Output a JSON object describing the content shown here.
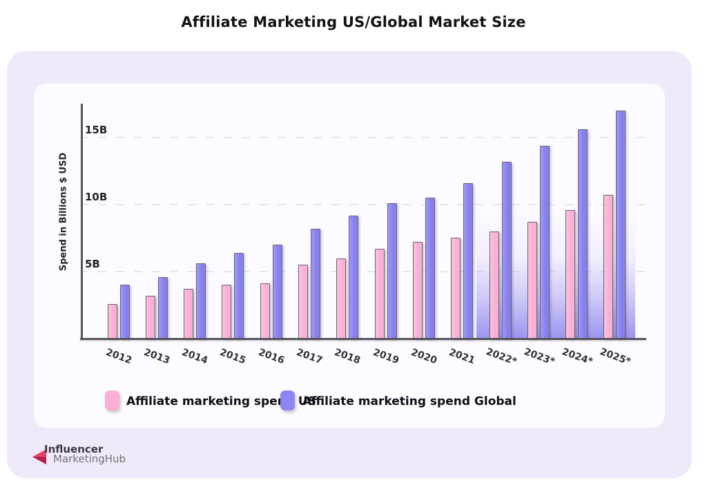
{
  "page": {
    "title": "Affiliate Marketing US/Global Market Size"
  },
  "chart_data": {
    "type": "bar",
    "title": "Affiliate Marketing US/Global Market Size",
    "categories": [
      "2012",
      "2013",
      "2014",
      "2015",
      "2016",
      "2017",
      "2018",
      "2019",
      "2020",
      "2021",
      "2022*",
      "2023*",
      "2024*",
      "2025*"
    ],
    "series": [
      {
        "name": "Affiliate marketing spend US",
        "color": "#f9b0d4",
        "values": [
          2.6,
          3.2,
          3.7,
          4.0,
          4.1,
          5.5,
          6.0,
          6.7,
          7.2,
          7.5,
          8.0,
          8.7,
          9.6,
          10.7
        ]
      },
      {
        "name": "Affiliate marketing spend Global",
        "color": "#8d86f2",
        "values": [
          4.0,
          4.6,
          5.6,
          6.4,
          7.0,
          8.2,
          9.2,
          10.1,
          10.5,
          11.6,
          13.2,
          14.4,
          15.6,
          17.0
        ]
      }
    ],
    "xlabel": "",
    "ylabel": "Spend in Billions $ USD",
    "ylim": [
      0,
      17.5
    ],
    "yticks": [
      {
        "value": 5,
        "label": "5B"
      },
      {
        "value": 10,
        "label": "10B"
      },
      {
        "value": 15,
        "label": "15B"
      }
    ],
    "grid": "horizontal-dashed",
    "legend_position": "bottom",
    "forecast_years": [
      "2022*",
      "2023*",
      "2024*",
      "2025*"
    ]
  },
  "legend": {
    "items": [
      {
        "label": "Affiliate marketing spend US",
        "color": "#f9b0d4"
      },
      {
        "label": "Affiliate marketing spend Global",
        "color": "#8d86f2"
      }
    ]
  },
  "logo": {
    "line1": "Influencer",
    "line2": "MarketingHub"
  },
  "colors": {
    "page_background": "#ffffff",
    "outer_card": "#efe9fa",
    "inner_card": "#fcfbff",
    "axis": "#55525c",
    "gridline": "#e7e6ed",
    "bar_us": "#f9b0d4",
    "bar_global": "#8d86f2",
    "forecast_glow": "#948cec",
    "logo_arrow_light": "#e8436b",
    "logo_arrow_dark": "#b5204c"
  }
}
